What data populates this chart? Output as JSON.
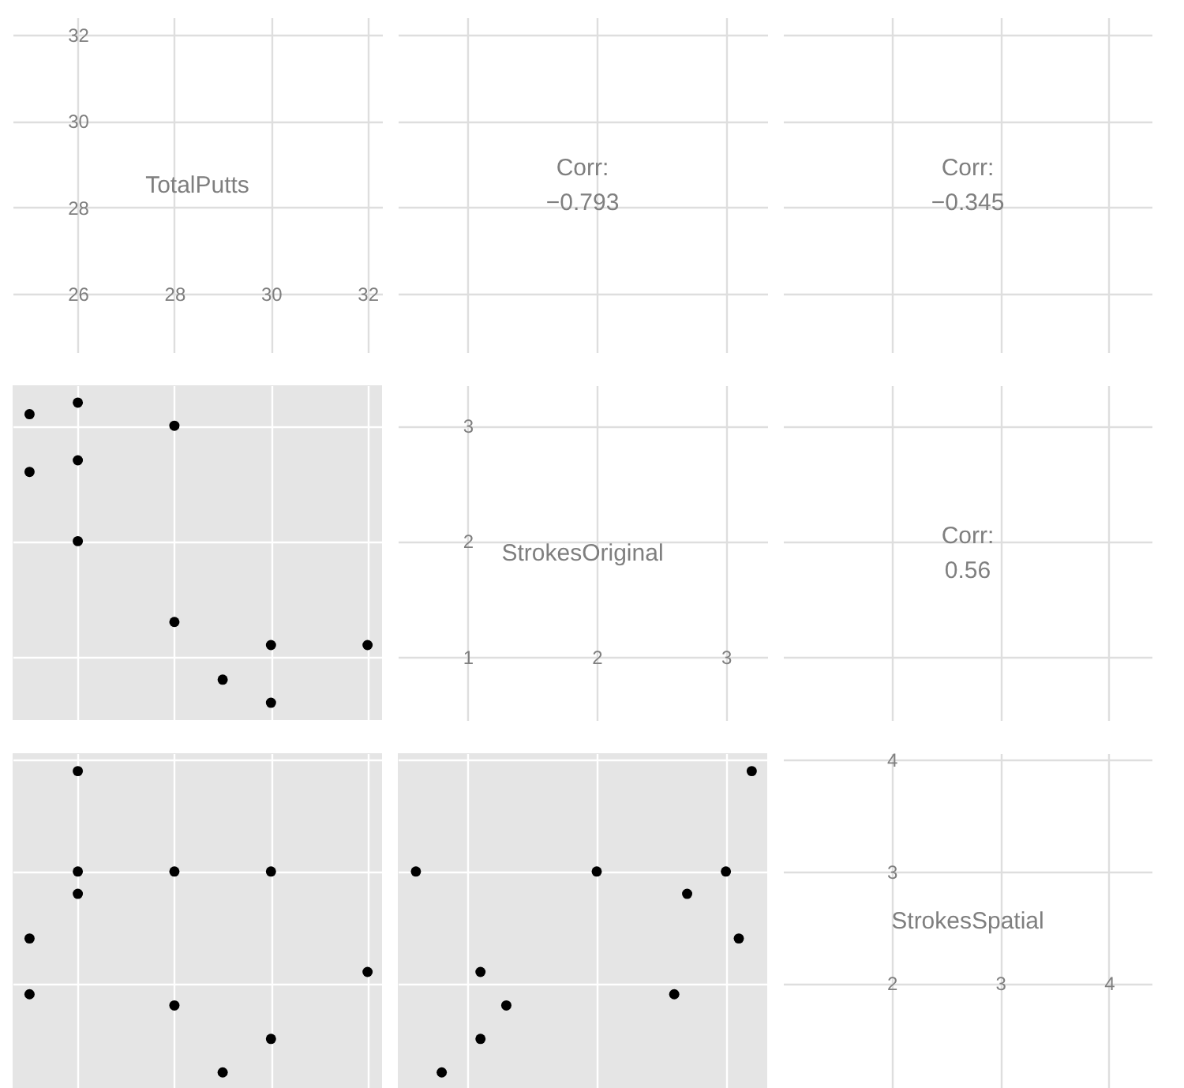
{
  "chart_data": [
    {
      "type": "scatter",
      "annotations": [
        "TotalPutts"
      ],
      "xlim": [
        24.65,
        32.3
      ],
      "xticks": [
        26,
        28,
        30,
        32
      ],
      "ylim": [
        24.65,
        32.4
      ],
      "yticks": [
        {
          "value": 26,
          "label": null
        },
        28,
        30,
        32
      ],
      "grid": true
    },
    {
      "type": "scatter",
      "annotations": [
        "Corr:",
        "−0.793"
      ],
      "xlim": [
        0.46,
        3.32
      ],
      "xticks": [
        1,
        2,
        3
      ],
      "ylim": [
        24.65,
        32.4
      ],
      "yticks": [
        26,
        28,
        30,
        32
      ],
      "grid": true,
      "tick_labels": false
    },
    {
      "type": "scatter",
      "annotations": [
        "Corr:",
        "−0.345"
      ],
      "xlim": [
        1.0,
        4.4
      ],
      "xticks": [
        2,
        3,
        4
      ],
      "ylim": [
        24.65,
        32.4
      ],
      "yticks": [
        26,
        28,
        30,
        32
      ],
      "grid": true,
      "tick_labels": false
    },
    {
      "type": "scatter",
      "xlim": [
        24.65,
        32.3
      ],
      "ylim": [
        0.45,
        3.35
      ],
      "grid": true,
      "tick_labels": false,
      "marker": "circle",
      "series": [
        {
          "color": "#000000",
          "x": [
            26,
            25,
            28,
            26,
            25,
            26,
            28,
            30,
            32,
            29,
            30
          ],
          "values": [
            3.2,
            3.1,
            3.0,
            2.7,
            2.6,
            2.0,
            1.3,
            1.1,
            1.1,
            0.8,
            0.6
          ]
        }
      ],
      "xticks": [
        26,
        28,
        30,
        32
      ],
      "yticks": [
        1,
        2,
        3
      ]
    },
    {
      "type": "scatter",
      "annotations": [
        "StrokesOriginal"
      ],
      "xlim": [
        0.46,
        3.32
      ],
      "xticks": [
        1,
        2,
        3
      ],
      "ylim": [
        0.45,
        3.35
      ],
      "yticks": [
        {
          "value": 1,
          "label": null
        },
        2,
        3
      ],
      "grid": true
    },
    {
      "type": "scatter",
      "annotations": [
        "Corr:",
        "0.56"
      ],
      "xlim": [
        1.0,
        4.4
      ],
      "xticks": [
        2,
        3,
        4
      ],
      "ylim": [
        0.45,
        3.35
      ],
      "yticks": [
        1,
        2,
        3
      ],
      "grid": true,
      "tick_labels": false
    },
    {
      "type": "scatter",
      "xlim": [
        24.65,
        32.3
      ],
      "ylim": [
        1.06,
        4.06
      ],
      "grid": true,
      "tick_labels": false,
      "marker": "circle",
      "series": [
        {
          "color": "#000000",
          "x": [
            26,
            25,
            28,
            26,
            25,
            26,
            28,
            30,
            32,
            29,
            30
          ],
          "values": [
            3.9,
            2.4,
            3.0,
            2.8,
            1.9,
            3.0,
            1.8,
            1.5,
            2.1,
            1.2,
            3.0
          ]
        }
      ],
      "xticks": [
        26,
        28,
        30,
        32
      ],
      "yticks": [
        2,
        3,
        4
      ]
    },
    {
      "type": "scatter",
      "xlim": [
        0.46,
        3.32
      ],
      "ylim": [
        1.06,
        4.06
      ],
      "grid": true,
      "tick_labels": false,
      "marker": "circle",
      "series": [
        {
          "color": "#000000",
          "x": [
            3.2,
            3.1,
            3.0,
            2.7,
            2.6,
            2.0,
            1.3,
            1.1,
            1.1,
            0.8,
            0.6
          ],
          "values": [
            3.9,
            2.4,
            3.0,
            2.8,
            1.9,
            3.0,
            1.8,
            1.5,
            2.1,
            1.2,
            3.0
          ]
        }
      ],
      "xticks": [
        1,
        2,
        3
      ],
      "yticks": [
        2,
        3,
        4
      ]
    },
    {
      "type": "scatter",
      "annotations": [
        "StrokesSpatial"
      ],
      "xlim": [
        1.0,
        4.4
      ],
      "xticks": [
        2,
        3,
        4
      ],
      "ylim": [
        1.06,
        4.06
      ],
      "yticks": [
        {
          "value": 2,
          "label": null
        },
        3,
        4
      ],
      "grid": true
    }
  ]
}
